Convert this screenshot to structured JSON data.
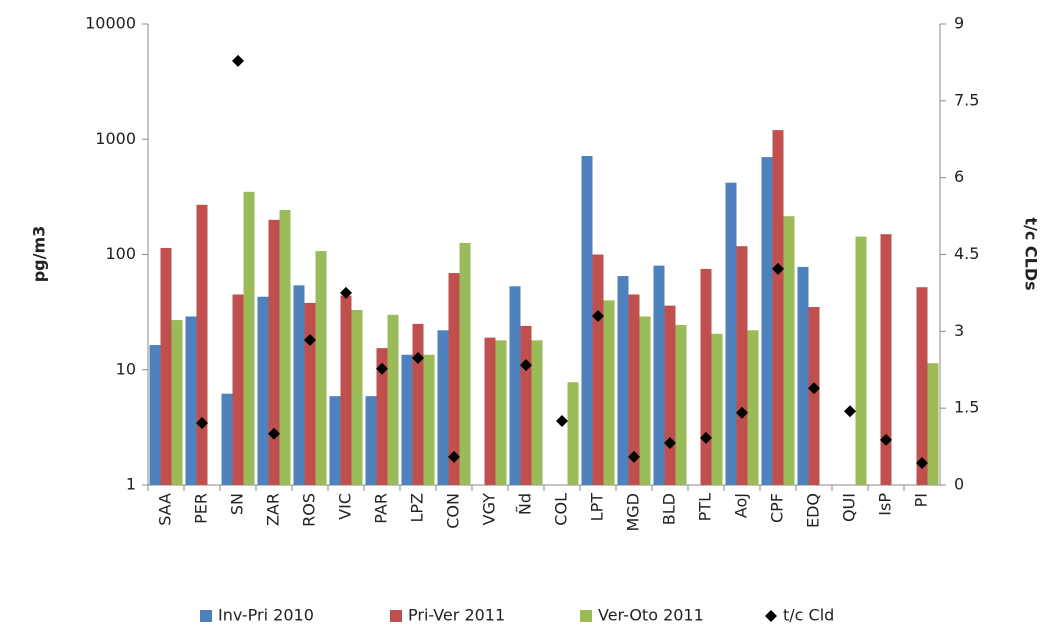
{
  "chart_data": {
    "type": "bar",
    "y_label": "pg/m3",
    "y2_label": "t/c CLDs",
    "yscale": "log",
    "categories": [
      "SAA",
      "PER",
      "SN",
      "ZAR",
      "ROS",
      "VIC",
      "PAR",
      "LPZ",
      "CON",
      "VGY",
      "Ñd",
      "COL",
      "LPT",
      "MGD",
      "BLD",
      "PTL",
      "AoJ",
      "CPF",
      "EDQ",
      "QUI",
      "IsP",
      "PI"
    ],
    "series": [
      {
        "name": "Inv-Pri 2010",
        "color": "#4f81bd",
        "values": [
          16.4,
          29,
          6.2,
          43,
          54,
          5.9,
          5.9,
          13.5,
          22,
          null,
          53,
          null,
          716,
          65,
          80,
          null,
          420,
          700,
          78,
          null,
          null,
          null
        ]
      },
      {
        "name": "Pri-Ver 2011",
        "color": "#c0504d",
        "values": [
          114,
          270,
          45,
          200,
          38,
          44,
          15.4,
          25,
          69,
          19,
          24,
          null,
          100,
          45,
          36,
          75,
          118,
          1200,
          35,
          null,
          150,
          52
        ]
      },
      {
        "name": "Ver-Oto 2011",
        "color": "#9bbb59",
        "values": [
          27,
          null,
          350,
          243,
          107,
          33,
          30,
          13.5,
          126,
          18,
          18,
          7.8,
          40,
          29,
          24.5,
          20.5,
          22,
          215,
          null,
          143,
          null,
          11.4
        ]
      },
      {
        "name": "t/c Cld",
        "color": "#000000",
        "type": "scatter",
        "marker": "diamond",
        "axis": "y2",
        "values": [
          null,
          1.21,
          8.28,
          1.0,
          2.83,
          3.75,
          2.27,
          2.48,
          0.55,
          null,
          2.34,
          1.25,
          3.3,
          0.55,
          0.82,
          0.92,
          1.41,
          4.22,
          1.89,
          1.44,
          0.88,
          0.43
        ]
      }
    ],
    "ylim": [
      1,
      10000
    ],
    "yticks": [
      1,
      10,
      100,
      1000,
      10000
    ],
    "y2lim": [
      0,
      9
    ],
    "y2ticks": [
      0,
      1.5,
      3,
      4.5,
      6,
      7.5,
      9
    ],
    "grid": false,
    "legend": "bottom"
  }
}
